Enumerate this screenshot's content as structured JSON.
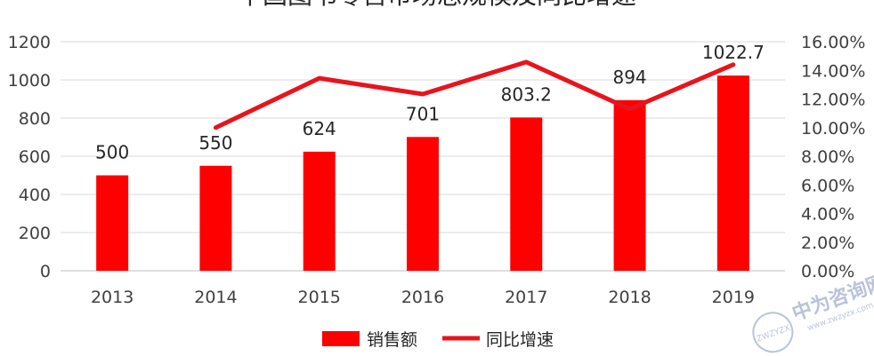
{
  "chart_data": {
    "type": "bar",
    "title": "中国图书零售市场总规模及同比增速",
    "categories": [
      "2013",
      "2014",
      "2015",
      "2016",
      "2017",
      "2018",
      "2019"
    ],
    "series": [
      {
        "name": "销售额",
        "type": "bar",
        "axis": "left",
        "values": [
          500,
          550,
          624,
          701,
          803.2,
          894,
          1022.7
        ],
        "labels": [
          "500",
          "550",
          "624",
          "701",
          "803.2",
          "894",
          "1022.7"
        ],
        "color": "#ff0000"
      },
      {
        "name": "同比增速",
        "type": "line",
        "axis": "right",
        "values": [
          null,
          10.0,
          13.45,
          12.34,
          14.58,
          11.3,
          14.4
        ],
        "color": "#e8141c"
      }
    ],
    "y_left": {
      "ylim": [
        0,
        1200
      ],
      "ticks": [
        "0",
        "200",
        "400",
        "600",
        "800",
        "1000",
        "1200"
      ]
    },
    "y_right": {
      "ylim": [
        0,
        16
      ],
      "ticks": [
        "0.00%",
        "2.00%",
        "4.00%",
        "6.00%",
        "8.00%",
        "10.00%",
        "12.00%",
        "14.00%",
        "16.00%"
      ]
    },
    "grid": true,
    "legend_position": "bottom"
  },
  "watermark": {
    "text": "中为咨询网",
    "url": "www.zwzyzx.com",
    "badge": "ZWZYZX",
    "color": "#b9c3da"
  }
}
